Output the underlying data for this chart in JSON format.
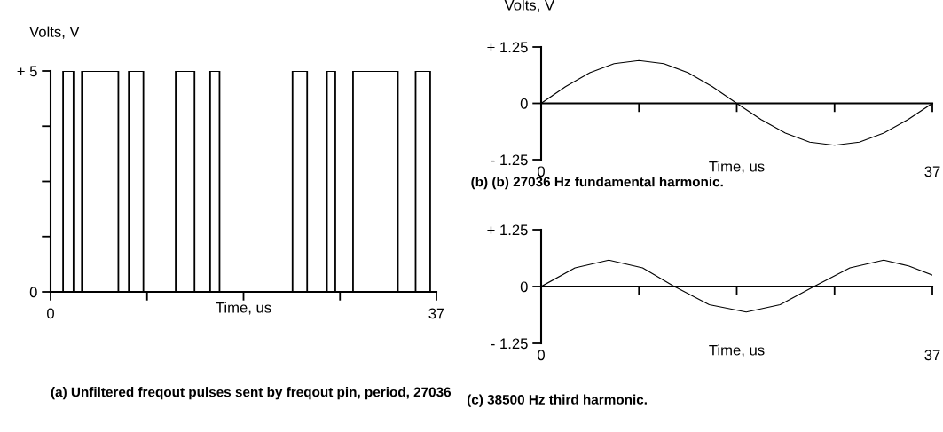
{
  "chart_data": [
    {
      "type": "step",
      "title": "(a) Unfiltered freqout pulses sent by freqout pin, period, 27036",
      "xlabel": "Time, us",
      "ylabel": "Volts, V",
      "x": [
        0,
        1.2,
        2.2,
        3.0,
        6.5,
        7.5,
        8.9,
        12.0,
        13.8,
        15.3,
        16.2,
        23.2,
        24.6,
        26.5,
        27.3,
        29.0,
        33.3,
        35.0,
        36.4,
        37
      ],
      "series": [
        {
          "color": "#000000",
          "values": [
            0,
            5,
            0,
            5,
            0,
            5,
            0,
            5,
            0,
            5,
            0,
            5,
            0,
            5,
            0,
            5,
            0,
            5,
            0,
            0
          ]
        }
      ],
      "xlim": [
        0,
        37
      ],
      "ylim": [
        0,
        5
      ],
      "xticks": [
        {
          "value": 0,
          "label": "0"
        },
        {
          "value": 9.25,
          "label": null
        },
        {
          "value": 18.5,
          "label": null
        },
        {
          "value": 27.75,
          "label": null
        },
        {
          "value": 37,
          "label": "37"
        }
      ],
      "yticks": [
        {
          "value": 0,
          "label": "0"
        },
        {
          "value": 1.25,
          "label": null
        },
        {
          "value": 2.5,
          "label": null
        },
        {
          "value": 3.75,
          "label": null
        },
        {
          "value": 5,
          "label": "+ 5"
        }
      ]
    },
    {
      "type": "line",
      "title": "(b) (b) 27036 Hz fundamental harmonic.",
      "xlabel": "Time, us",
      "ylabel": "Volts, V",
      "x": [
        0,
        2.3,
        4.6,
        6.9,
        9.25,
        11.6,
        13.9,
        16.2,
        18.5,
        20.8,
        23.1,
        25.4,
        27.75,
        30.1,
        32.4,
        34.7,
        37
      ],
      "series": [
        {
          "color": "#000000",
          "values": [
            0,
            0.37,
            0.68,
            0.88,
            0.95,
            0.88,
            0.68,
            0.37,
            0,
            -0.36,
            -0.66,
            -0.86,
            -0.93,
            -0.86,
            -0.66,
            -0.36,
            0
          ]
        }
      ],
      "xlim": [
        0,
        37
      ],
      "ylim": [
        -1.25,
        1.25
      ],
      "xticks": [
        {
          "value": 0,
          "label": "0"
        },
        {
          "value": 9.25,
          "label": null
        },
        {
          "value": 18.5,
          "label": null
        },
        {
          "value": 27.75,
          "label": null
        },
        {
          "value": 37,
          "label": "37"
        }
      ],
      "yticks": [
        {
          "value": -1.25,
          "label": "- 1.25"
        },
        {
          "value": 0,
          "label": "0"
        },
        {
          "value": 1.25,
          "label": "+ 1.25"
        }
      ]
    },
    {
      "type": "line",
      "title": "(c) 38500 Hz third harmonic.",
      "xlabel": "Time, us",
      "x": [
        0,
        3.2,
        6.4,
        9.6,
        12.6,
        15.9,
        19.4,
        22.6,
        25.8,
        29.2,
        32.4,
        34.8,
        37
      ],
      "series": [
        {
          "color": "#000000",
          "values": [
            0,
            0.41,
            0.58,
            0.41,
            0,
            -0.4,
            -0.56,
            -0.4,
            0,
            0.41,
            0.58,
            0.45,
            0.25
          ]
        }
      ],
      "xlim": [
        0,
        37
      ],
      "ylim": [
        -1.25,
        1.25
      ],
      "xticks": [
        {
          "value": 0,
          "label": "0"
        },
        {
          "value": 9.25,
          "label": null
        },
        {
          "value": 18.5,
          "label": null
        },
        {
          "value": 27.75,
          "label": null
        },
        {
          "value": 37,
          "label": "37"
        }
      ],
      "yticks": [
        {
          "value": -1.25,
          "label": "- 1.25"
        },
        {
          "value": 0,
          "label": "0"
        },
        {
          "value": 1.25,
          "label": "+ 1.25"
        }
      ]
    }
  ]
}
